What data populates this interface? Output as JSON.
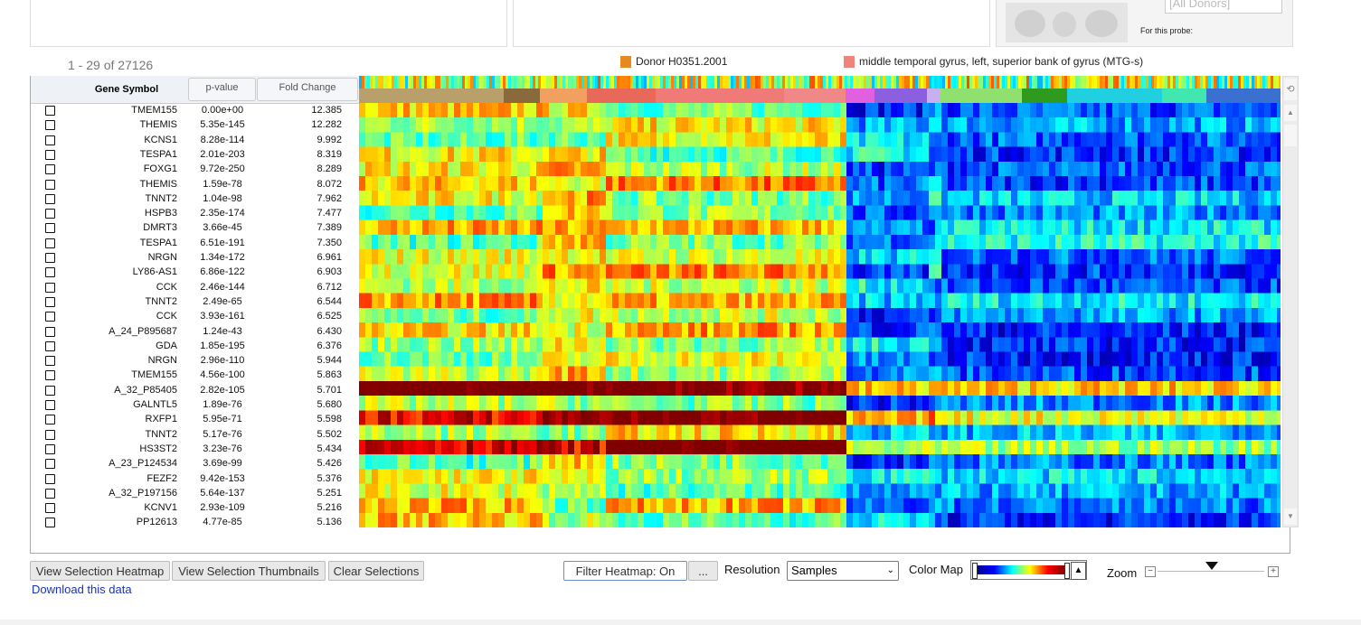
{
  "top_panel": {
    "donor_select": "[All Donors]",
    "probe_label": "For this probe:"
  },
  "range_text": "1 - 29 of 27126",
  "legend": [
    "Donor H0351.2001",
    "middle temporal gyrus, left, superior bank of gyrus (MTG-s)"
  ],
  "table": {
    "headers": [
      "Gene Symbol",
      "p-value",
      "Fold Change"
    ],
    "rows": [
      [
        "TMEM155",
        "0.00e+00",
        "12.385"
      ],
      [
        "THEMIS",
        "5.35e-145",
        "12.282"
      ],
      [
        "KCNS1",
        "8.28e-114",
        "9.992"
      ],
      [
        "TESPA1",
        "2.01e-203",
        "8.319"
      ],
      [
        "FOXG1",
        "9.72e-250",
        "8.289"
      ],
      [
        "THEMIS",
        "1.59e-78",
        "8.072"
      ],
      [
        "TNNT2",
        "1.04e-98",
        "7.962"
      ],
      [
        "HSPB3",
        "2.35e-174",
        "7.477"
      ],
      [
        "DMRT3",
        "3.66e-45",
        "7.389"
      ],
      [
        "TESPA1",
        "6.51e-191",
        "7.350"
      ],
      [
        "NRGN",
        "1.34e-172",
        "6.961"
      ],
      [
        "LY86-AS1",
        "6.86e-122",
        "6.903"
      ],
      [
        "CCK",
        "2.46e-144",
        "6.712"
      ],
      [
        "TNNT2",
        "2.49e-65",
        "6.544"
      ],
      [
        "CCK",
        "3.93e-161",
        "6.525"
      ],
      [
        "A_24_P895687",
        "1.24e-43",
        "6.430"
      ],
      [
        "GDA",
        "1.85e-195",
        "6.376"
      ],
      [
        "NRGN",
        "2.96e-110",
        "5.944"
      ],
      [
        "TMEM155",
        "4.56e-100",
        "5.863"
      ],
      [
        "A_32_P85405",
        "2.82e-105",
        "5.701"
      ],
      [
        "GALNTL5",
        "1.89e-76",
        "5.680"
      ],
      [
        "RXFP1",
        "5.95e-71",
        "5.598"
      ],
      [
        "TNNT2",
        "5.17e-76",
        "5.502"
      ],
      [
        "HS3ST2",
        "3.23e-76",
        "5.434"
      ],
      [
        "A_23_P124534",
        "3.69e-99",
        "5.426"
      ],
      [
        "FEZF2",
        "9.42e-153",
        "5.376"
      ],
      [
        "A_32_P197156",
        "5.64e-137",
        "5.251"
      ],
      [
        "KCNV1",
        "2.93e-109",
        "5.216"
      ],
      [
        "PP12613",
        "4.77e-85",
        "5.136"
      ]
    ]
  },
  "buttons": [
    "View Selection Heatmap",
    "View Selection Thumbnails",
    "Clear Selections"
  ],
  "download_link": "Download this data",
  "controls": {
    "filter": "Filter Heatmap: On",
    "more": "...",
    "resolution_label": "Resolution",
    "resolution_value": "Samples",
    "colormap_label": "Color Map",
    "zoom_label": "Zoom"
  }
}
